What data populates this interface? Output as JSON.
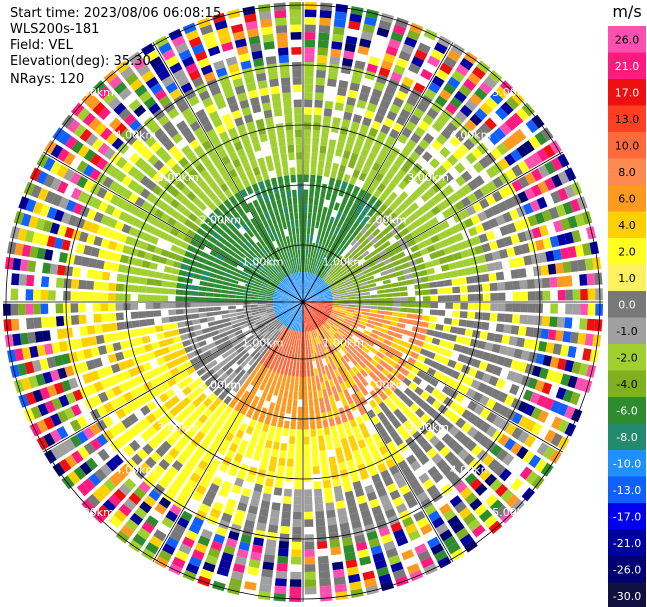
{
  "header": {
    "start_time": "Start time: 2023/08/06 06:08:15",
    "station": "WLS200s-181",
    "field": "Field: VEL",
    "elevation": "Elevation(deg): 35.30",
    "nrays": "NRays: 120"
  },
  "colorbar": {
    "unit": "m/s",
    "ticks": [
      "26.0",
      "21.0",
      "17.0",
      "13.0",
      "10.0",
      "8.0",
      "6.0",
      "4.0",
      "2.0",
      "1.0",
      "0.0",
      "-1.0",
      "-2.0",
      "-4.0",
      "-6.0",
      "-8.0",
      "-10.0",
      "-13.0",
      "-17.0",
      "-21.0",
      "-26.0",
      "-30.0"
    ],
    "colors": [
      "#ff4fb0",
      "#ff1a80",
      "#ee1010",
      "#ff4020",
      "#ff6a3a",
      "#ff8a50",
      "#ff9a20",
      "#ffd000",
      "#ffff20",
      "#fff060",
      "#787878",
      "#a0a0a0",
      "#a0d030",
      "#7fb020",
      "#2e8b2e",
      "#228b6e",
      "#1e90ff",
      "#1060ff",
      "#0000ee",
      "#0000a0",
      "#000070",
      "#101040"
    ]
  },
  "rings": {
    "labels": [
      "1.00km",
      "2.00km",
      "3.00km",
      "4.00km",
      "5.00km"
    ]
  }
}
